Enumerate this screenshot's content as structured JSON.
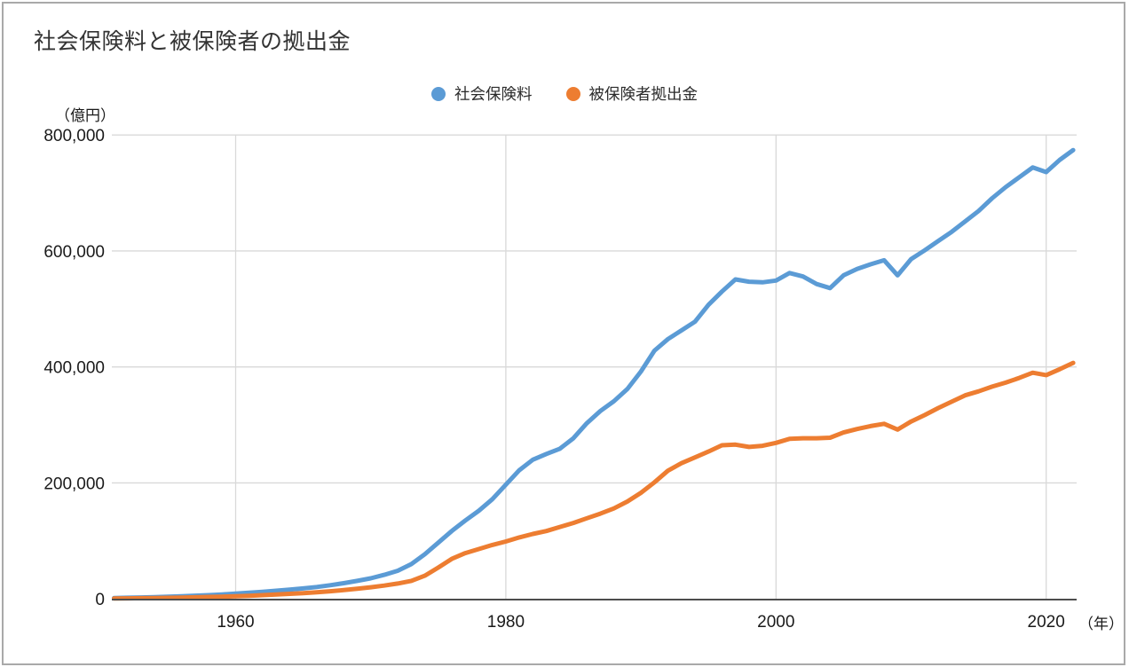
{
  "title": "社会保険料と被保険者の拠出金",
  "legend": [
    {
      "label": "社会保険料",
      "color": "#5B9BD5"
    },
    {
      "label": "被保険者拠出金",
      "color": "#ED7D31"
    }
  ],
  "axes": {
    "y_unit": "（億円）",
    "x_unit": "（年）",
    "y_ticks": [
      {
        "value": 0,
        "label": "0"
      },
      {
        "value": 200000,
        "label": "200,000"
      },
      {
        "value": 400000,
        "label": "400,000"
      },
      {
        "value": 600000,
        "label": "600,000"
      },
      {
        "value": 800000,
        "label": "800,000"
      }
    ],
    "x_ticks": [
      {
        "value": 1960,
        "label": "1960"
      },
      {
        "value": 1980,
        "label": "1980"
      },
      {
        "value": 2000,
        "label": "2000"
      },
      {
        "value": 2020,
        "label": "2020"
      }
    ]
  },
  "colors": {
    "background": "#FFFFFF",
    "frame": "#A9A9A9",
    "grid": "#D9D9D9",
    "axis": "#4D4D4D",
    "tick_text": "#1A1A1A",
    "title_text": "#333333",
    "series_blue": "#5B9BD5",
    "series_orange": "#ED7D31"
  },
  "chart_data": {
    "type": "line",
    "title": "社会保険料と被保険者の拠出金",
    "xlabel": "（年）",
    "ylabel": "（億円）",
    "ylim": [
      0,
      800000
    ],
    "xlim": [
      1950.8,
      2022.3
    ],
    "grid": true,
    "legend_position": "top-center",
    "x": [
      1951,
      1952,
      1953,
      1954,
      1955,
      1956,
      1957,
      1958,
      1959,
      1960,
      1961,
      1962,
      1963,
      1964,
      1965,
      1966,
      1967,
      1968,
      1969,
      1970,
      1971,
      1972,
      1973,
      1974,
      1975,
      1976,
      1977,
      1978,
      1979,
      1980,
      1981,
      1982,
      1983,
      1984,
      1985,
      1986,
      1987,
      1988,
      1989,
      1990,
      1991,
      1992,
      1993,
      1994,
      1995,
      1996,
      1997,
      1998,
      1999,
      2000,
      2001,
      2002,
      2003,
      2004,
      2005,
      2006,
      2007,
      2008,
      2009,
      2010,
      2011,
      2012,
      2013,
      2014,
      2015,
      2016,
      2017,
      2018,
      2019,
      2020,
      2021,
      2022
    ],
    "series": [
      {
        "name": "社会保険料",
        "color": "#5B9BD5",
        "values": [
          1500,
          2000,
          2500,
          3100,
          3800,
          4600,
          5500,
          6500,
          7700,
          9000,
          10500,
          12200,
          14000,
          16000,
          18000,
          20500,
          23500,
          27000,
          31000,
          35500,
          41500,
          48500,
          60000,
          77000,
          97000,
          117000,
          135000,
          152000,
          172000,
          197000,
          222000,
          240000,
          250000,
          259000,
          277000,
          303000,
          324000,
          341000,
          362000,
          392000,
          428000,
          448000,
          463000,
          478000,
          507000,
          530000,
          551000,
          547000,
          546000,
          549000,
          562000,
          556000,
          543000,
          536000,
          558000,
          569000,
          577000,
          584000,
          558000,
          586000,
          601000,
          617000,
          633000,
          651000,
          669000,
          691000,
          710000,
          727000,
          744000,
          736000,
          757000,
          774000
        ]
      },
      {
        "name": "被保険者拠出金",
        "color": "#ED7D31",
        "values": [
          700,
          950,
          1200,
          1500,
          1900,
          2300,
          2800,
          3300,
          3900,
          4600,
          5400,
          6400,
          7500,
          8700,
          10000,
          11500,
          13200,
          15200,
          17500,
          20000,
          23000,
          26500,
          31000,
          40000,
          54000,
          69000,
          79000,
          86000,
          93000,
          99000,
          106000,
          112000,
          117000,
          124000,
          131000,
          139000,
          147000,
          156000,
          168000,
          183000,
          201000,
          221000,
          234000,
          244000,
          254000,
          265000,
          266000,
          262000,
          264000,
          269000,
          276000,
          277000,
          277000,
          278000,
          287000,
          293000,
          298000,
          302000,
          292000,
          306000,
          317000,
          329000,
          340000,
          351000,
          358000,
          366000,
          373000,
          381000,
          390000,
          386000,
          396000,
          407000
        ]
      }
    ]
  }
}
